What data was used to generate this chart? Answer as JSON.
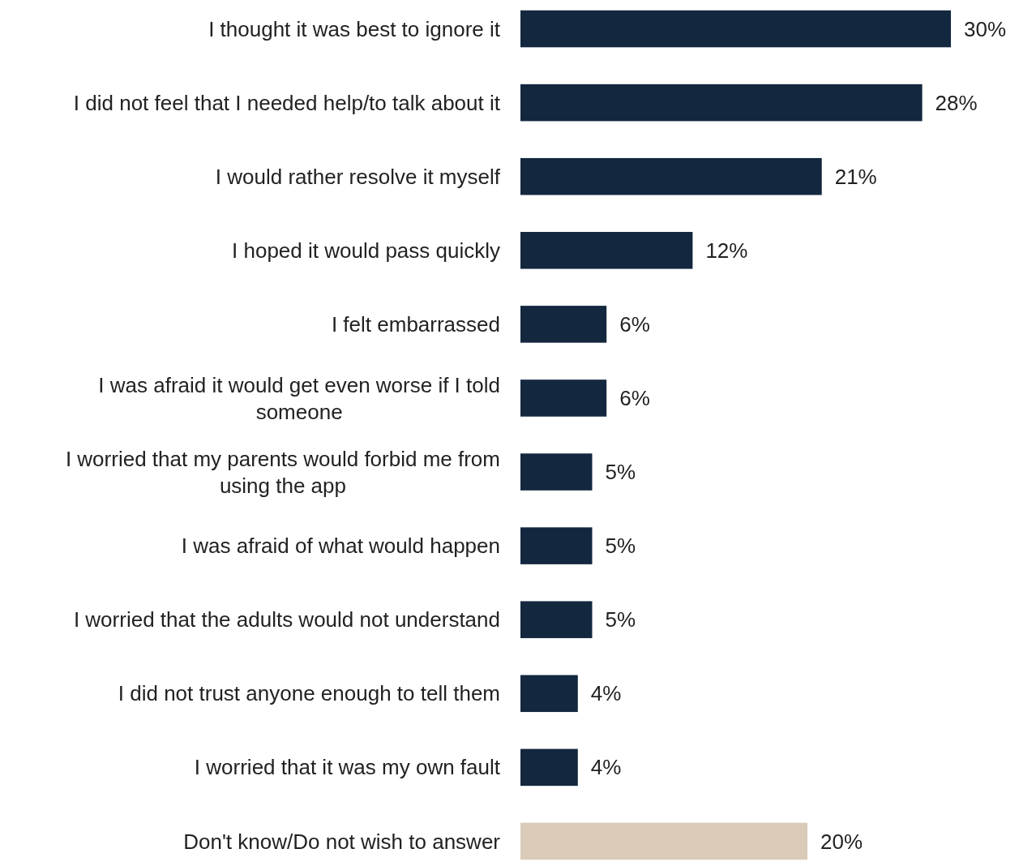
{
  "chart_data": {
    "type": "bar",
    "orientation": "horizontal",
    "categories": [
      "I thought it was best to ignore it",
      "I did not feel that I needed help/to talk about it",
      "I would rather resolve it myself",
      "I hoped it would pass quickly",
      "I felt embarrassed",
      "I was afraid it would get even worse if I told someone",
      "I worried that my parents would forbid me from using the app",
      "I was afraid of what would happen",
      "I worried that the adults would not understand",
      "I did not trust anyone enough to tell them",
      "I worried that it was my own fault",
      "Don't know/Do not wish to answer"
    ],
    "values": [
      30,
      28,
      21,
      12,
      6,
      6,
      5,
      5,
      5,
      4,
      4,
      20
    ],
    "colors": [
      "#13283f",
      "#13283f",
      "#13283f",
      "#13283f",
      "#13283f",
      "#13283f",
      "#13283f",
      "#13283f",
      "#13283f",
      "#13283f",
      "#13283f",
      "#d9cbb7"
    ],
    "value_labels": [
      "30%",
      "28%",
      "21%",
      "12%",
      "6%",
      "6%",
      "5%",
      "5%",
      "5%",
      "4%",
      "4%",
      "20%"
    ]
  }
}
